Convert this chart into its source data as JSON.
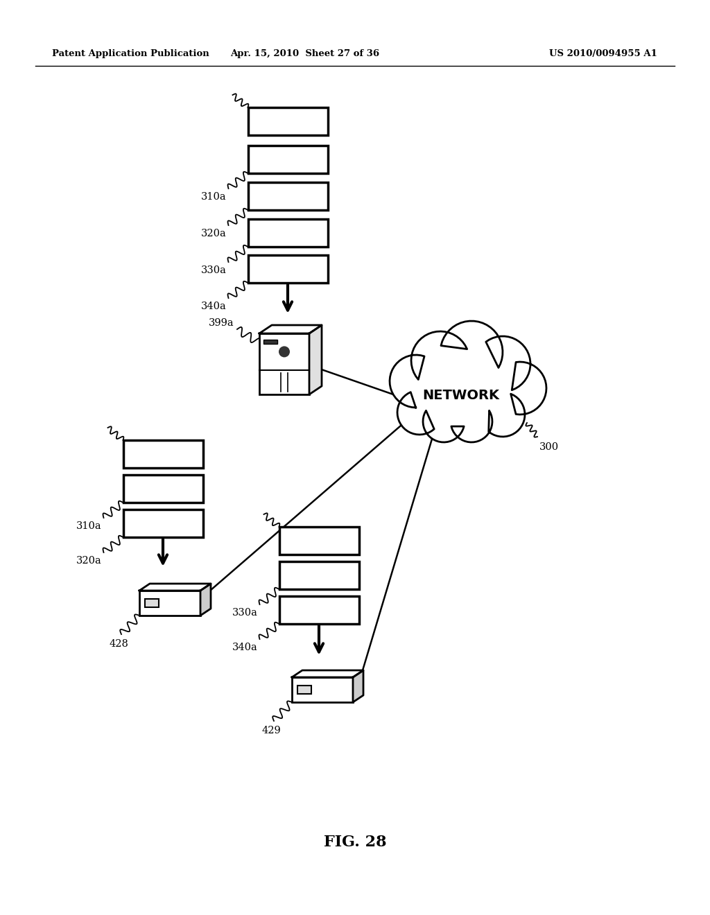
{
  "title_left": "Patent Application Publication",
  "title_mid": "Apr. 15, 2010  Sheet 27 of 36",
  "title_right": "US 2010/0094955 A1",
  "fig_label": "FIG. 28",
  "bg_color": "#ffffff",
  "line_color": "#000000",
  "figsize": [
    10.24,
    13.2
  ],
  "dpi": 100
}
